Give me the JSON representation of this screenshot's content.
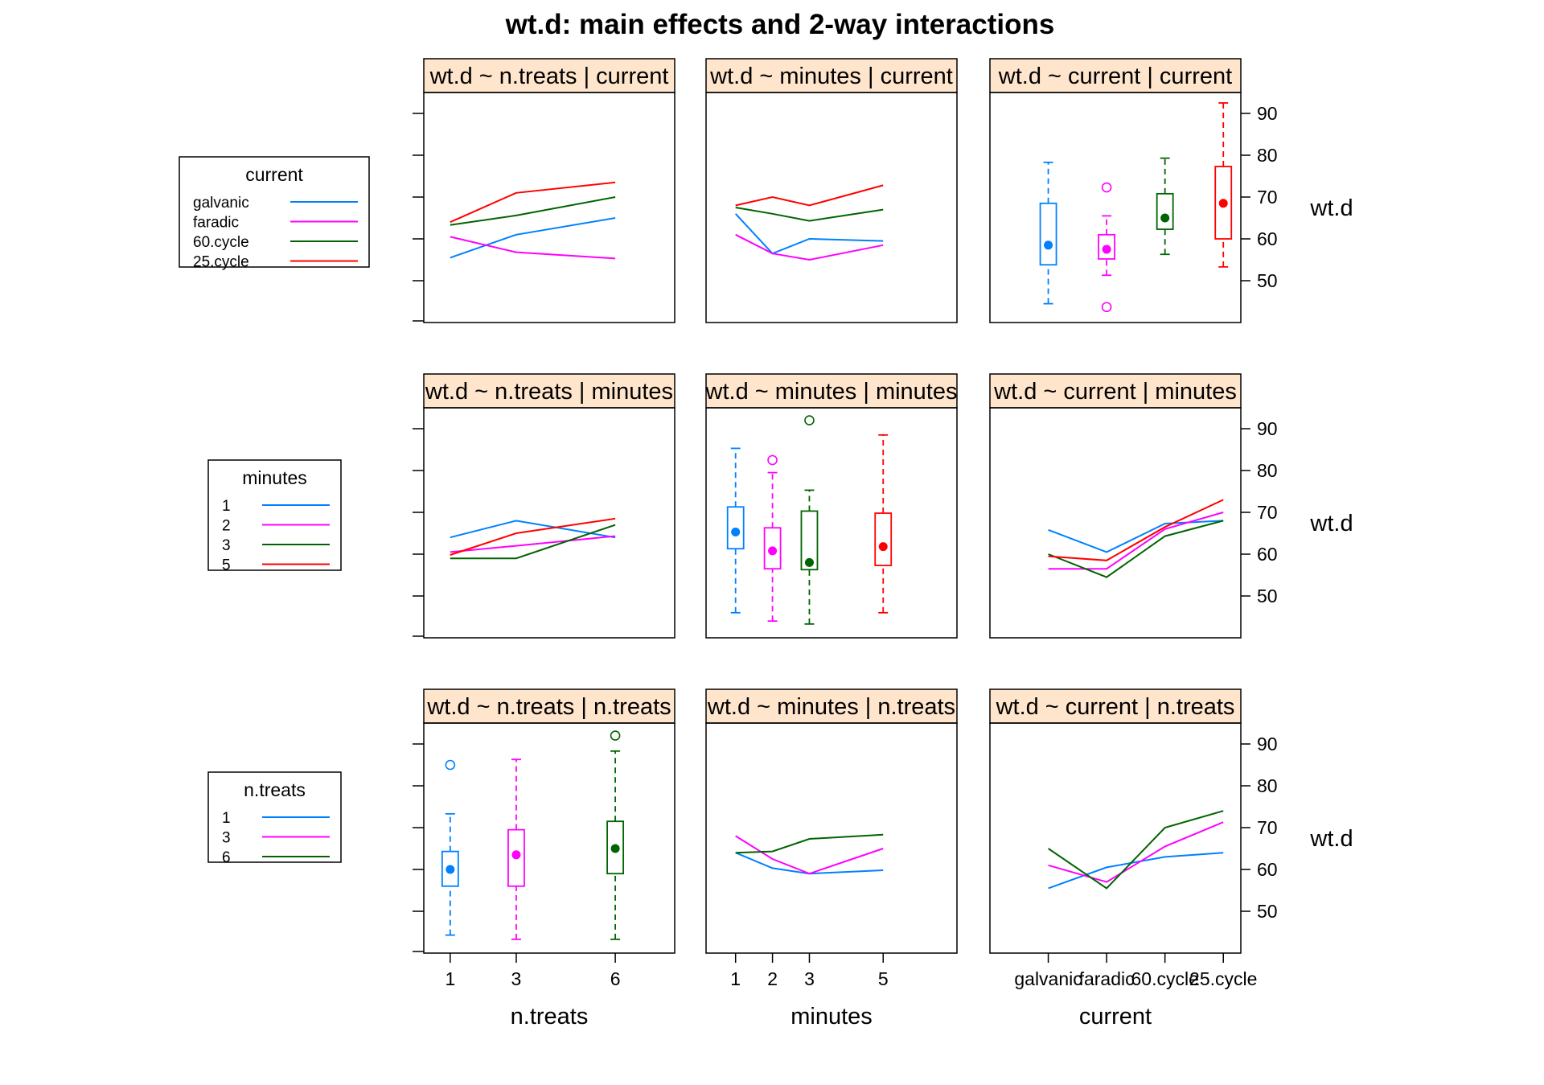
{
  "chart_data": {
    "type": "interaction-matrix",
    "title": "wt.d: main effects and 2-way interactions",
    "ylabel": "wt.d",
    "ylim": [
      40,
      95
    ],
    "yticks": [
      50,
      60,
      70,
      80,
      90
    ],
    "colors": {
      "blue": "#0080ff",
      "magenta": "#ff00ff",
      "green": "#006400",
      "red": "#ff0000"
    },
    "columns": [
      {
        "name": "n.treats",
        "xlabel": "n.treats",
        "xlim": [
          0.2,
          7.8
        ],
        "tick_values": [
          1,
          3,
          6
        ],
        "tick_labels": [
          "1",
          "3",
          "6"
        ]
      },
      {
        "name": "minutes",
        "xlabel": "minutes",
        "xlim": [
          0.2,
          7.0
        ],
        "tick_values": [
          1,
          2,
          3,
          5
        ],
        "tick_labels": [
          "1",
          "2",
          "3",
          "5"
        ]
      },
      {
        "name": "current",
        "xlabel": "current",
        "xlim": [
          0.0,
          4.3
        ],
        "tick_values": [
          1,
          2,
          3,
          4
        ],
        "tick_labels": [
          "galvanic",
          "faradic",
          "60.cycle",
          "25.cycle"
        ]
      }
    ],
    "legends": [
      {
        "title": "current",
        "levels": [
          "galvanic",
          "faradic",
          "60.cycle",
          "25.cycle"
        ],
        "colors": [
          "#0080ff",
          "#ff00ff",
          "#006400",
          "#ff0000"
        ]
      },
      {
        "title": "minutes",
        "levels": [
          "1",
          "2",
          "3",
          "5"
        ],
        "colors": [
          "#0080ff",
          "#ff00ff",
          "#006400",
          "#ff0000"
        ]
      },
      {
        "title": "n.treats",
        "levels": [
          "1",
          "3",
          "6"
        ],
        "colors": [
          "#0080ff",
          "#ff00ff",
          "#006400"
        ]
      }
    ],
    "panels": [
      {
        "row": 0,
        "col": 0,
        "strip": "wt.d ~ n.treats | current",
        "kind": "lines",
        "x": [
          1,
          3,
          6
        ],
        "series": [
          {
            "name": "galvanic",
            "color": "#0080ff",
            "values": [
              55.5,
              61,
              65
            ]
          },
          {
            "name": "faradic",
            "color": "#ff00ff",
            "values": [
              60.5,
              56.8,
              55.3
            ]
          },
          {
            "name": "60.cycle",
            "color": "#006400",
            "values": [
              63.3,
              65.6,
              70
            ]
          },
          {
            "name": "25.cycle",
            "color": "#ff0000",
            "values": [
              64,
              71,
              73.5
            ]
          }
        ]
      },
      {
        "row": 0,
        "col": 1,
        "strip": "wt.d ~ minutes | current",
        "kind": "lines",
        "x": [
          1,
          2,
          3,
          5
        ],
        "series": [
          {
            "name": "galvanic",
            "color": "#0080ff",
            "values": [
              66,
              56.5,
              60,
              59.5
            ]
          },
          {
            "name": "faradic",
            "color": "#ff00ff",
            "values": [
              61,
              56.5,
              55,
              58.5
            ]
          },
          {
            "name": "60.cycle",
            "color": "#006400",
            "values": [
              67.5,
              66,
              64.3,
              67
            ]
          },
          {
            "name": "25.cycle",
            "color": "#ff0000",
            "values": [
              68,
              70,
              68,
              72.8
            ]
          }
        ]
      },
      {
        "row": 0,
        "col": 2,
        "strip": "wt.d ~ current | current",
        "kind": "box",
        "boxes": [
          {
            "x": 1,
            "color": "#0080ff",
            "whisker_low": 44.5,
            "q1": 53.8,
            "median": 58.5,
            "q3": 68.5,
            "whisker_high": 78.3,
            "outliers": []
          },
          {
            "x": 2,
            "color": "#ff00ff",
            "whisker_low": 51.3,
            "q1": 55.2,
            "median": 57.5,
            "q3": 61,
            "whisker_high": 65.5,
            "outliers": [
              72.3,
              43.7
            ]
          },
          {
            "x": 3,
            "color": "#006400",
            "whisker_low": 56.3,
            "q1": 62.3,
            "median": 65,
            "q3": 70.8,
            "whisker_high": 79.3,
            "outliers": []
          },
          {
            "x": 4,
            "color": "#ff0000",
            "whisker_low": 53.3,
            "q1": 60,
            "median": 68.5,
            "q3": 77.3,
            "whisker_high": 92.5,
            "outliers": []
          }
        ]
      },
      {
        "row": 1,
        "col": 0,
        "strip": "wt.d ~ n.treats | minutes",
        "kind": "lines",
        "x": [
          1,
          3,
          6
        ],
        "series": [
          {
            "name": "1",
            "color": "#0080ff",
            "values": [
              64,
              68,
              64
            ]
          },
          {
            "name": "2",
            "color": "#ff00ff",
            "values": [
              60.5,
              62,
              64.3
            ]
          },
          {
            "name": "3",
            "color": "#006400",
            "values": [
              59,
              59,
              67
            ]
          },
          {
            "name": "5",
            "color": "#ff0000",
            "values": [
              59.8,
              65,
              68.5
            ]
          }
        ]
      },
      {
        "row": 1,
        "col": 1,
        "strip": "wt.d ~ minutes | minutes",
        "kind": "box",
        "boxes": [
          {
            "x": 1,
            "color": "#0080ff",
            "whisker_low": 46,
            "q1": 61.3,
            "median": 65.3,
            "q3": 71.3,
            "whisker_high": 85.3,
            "outliers": []
          },
          {
            "x": 2,
            "color": "#ff00ff",
            "whisker_low": 44,
            "q1": 56.5,
            "median": 60.8,
            "q3": 66.3,
            "whisker_high": 79.5,
            "outliers": [
              82.5
            ]
          },
          {
            "x": 3,
            "color": "#006400",
            "whisker_low": 43.3,
            "q1": 56.3,
            "median": 58,
            "q3": 70.3,
            "whisker_high": 75.3,
            "outliers": [
              92
            ]
          },
          {
            "x": 5,
            "color": "#ff0000",
            "whisker_low": 46,
            "q1": 57.3,
            "median": 61.8,
            "q3": 69.8,
            "whisker_high": 88.5,
            "outliers": []
          }
        ]
      },
      {
        "row": 1,
        "col": 2,
        "strip": "wt.d ~ current | minutes",
        "kind": "lines",
        "x": [
          1,
          2,
          3,
          4
        ],
        "series": [
          {
            "name": "1",
            "color": "#0080ff",
            "values": [
              65.8,
              60.5,
              67.3,
              68
            ]
          },
          {
            "name": "2",
            "color": "#ff00ff",
            "values": [
              56.5,
              56.5,
              66,
              70
            ]
          },
          {
            "name": "3",
            "color": "#006400",
            "values": [
              60,
              54.5,
              64.3,
              68
            ]
          },
          {
            "name": "5",
            "color": "#ff0000",
            "values": [
              59.5,
              58.5,
              66.5,
              73
            ]
          }
        ]
      },
      {
        "row": 2,
        "col": 0,
        "strip": "wt.d ~ n.treats | n.treats",
        "kind": "box",
        "boxes": [
          {
            "x": 1,
            "color": "#0080ff",
            "whisker_low": 44.3,
            "q1": 56,
            "median": 60,
            "q3": 64.3,
            "whisker_high": 73.3,
            "outliers": [
              85
            ]
          },
          {
            "x": 3,
            "color": "#ff00ff",
            "whisker_low": 43.3,
            "q1": 56,
            "median": 63.5,
            "q3": 69.5,
            "whisker_high": 86.3,
            "outliers": []
          },
          {
            "x": 6,
            "color": "#006400",
            "whisker_low": 43.3,
            "q1": 59,
            "median": 65,
            "q3": 71.5,
            "whisker_high": 88.3,
            "outliers": [
              92
            ]
          }
        ]
      },
      {
        "row": 2,
        "col": 1,
        "strip": "wt.d ~ minutes | n.treats",
        "kind": "lines",
        "x": [
          1,
          2,
          3,
          5
        ],
        "series": [
          {
            "name": "1",
            "color": "#0080ff",
            "values": [
              64,
              60.3,
              59,
              59.8
            ]
          },
          {
            "name": "3",
            "color": "#ff00ff",
            "values": [
              68,
              62.5,
              59,
              65
            ]
          },
          {
            "name": "6",
            "color": "#006400",
            "values": [
              64,
              64.3,
              67.3,
              68.3
            ]
          }
        ]
      },
      {
        "row": 2,
        "col": 2,
        "strip": "wt.d ~ current | n.treats",
        "kind": "lines",
        "x": [
          1,
          2,
          3,
          4
        ],
        "series": [
          {
            "name": "1",
            "color": "#0080ff",
            "values": [
              55.5,
              60.5,
              63,
              64
            ]
          },
          {
            "name": "3",
            "color": "#ff00ff",
            "values": [
              61,
              57,
              65.5,
              71.3
            ]
          },
          {
            "name": "6",
            "color": "#006400",
            "values": [
              65,
              55.5,
              70,
              74
            ]
          }
        ]
      }
    ]
  }
}
